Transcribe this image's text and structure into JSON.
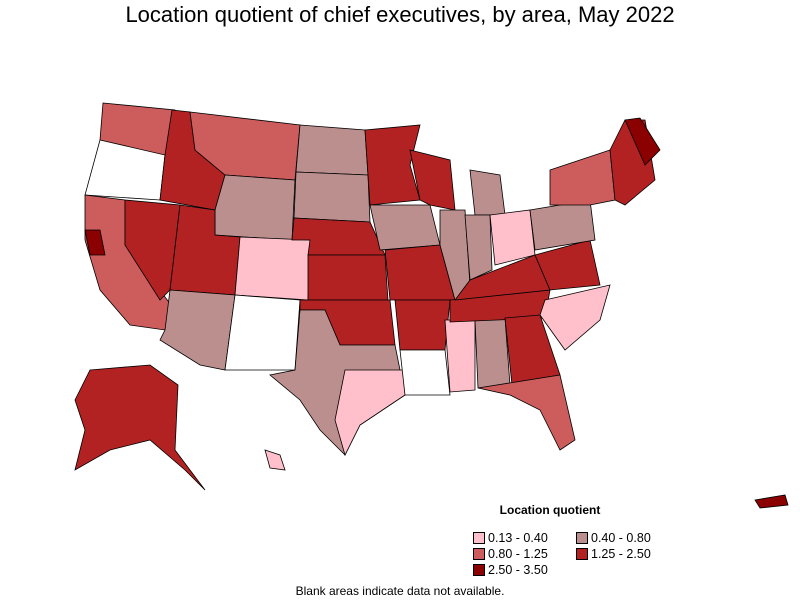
{
  "title": "Location quotient of chief executives, by area, May 2022",
  "legend": {
    "title": "Location quotient",
    "items": [
      {
        "label": "0.13 - 0.40",
        "color": "#FFC0CB"
      },
      {
        "label": "0.40 - 0.80",
        "color": "#BC8F8F"
      },
      {
        "label": "0.80 - 1.25",
        "color": "#CD5C5C"
      },
      {
        "label": "1.25 - 2.50",
        "color": "#B22222"
      },
      {
        "label": "2.50 - 3.50",
        "color": "#8B0000"
      }
    ]
  },
  "note": "Blank areas indicate data not available."
}
